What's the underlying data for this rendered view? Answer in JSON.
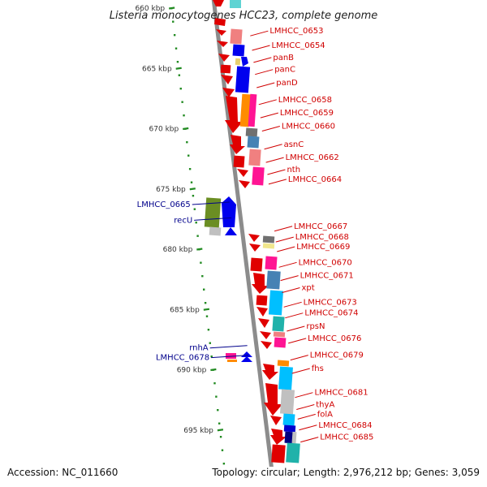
{
  "title": "Listeria monocytogenes HCC23, complete genome",
  "footer": {
    "accession": "Accession: NC_011660",
    "summary": "Topology: circular; Length: 2,976,212 bp; Genes: 3,059"
  },
  "colors": {
    "backbone": "#8c8c8c",
    "dots": "#228b22",
    "right_label": "#d00000",
    "left_label": "#00008b"
  },
  "scale": {
    "unit": "kbp",
    "ticks": [
      {
        "kbp": 660,
        "label": "660 kbp"
      },
      {
        "kbp": 665,
        "label": "665 kbp"
      },
      {
        "kbp": 670,
        "label": "670 kbp"
      },
      {
        "kbp": 675,
        "label": "675 kbp"
      },
      {
        "kbp": 680,
        "label": "680 kbp"
      },
      {
        "kbp": 685,
        "label": "685 kbp"
      },
      {
        "kbp": 690,
        "label": "690 kbp"
      },
      {
        "kbp": 695,
        "label": "695 kbp"
      }
    ]
  },
  "genes_right": [
    {
      "name": "LMHCC_0653",
      "kbp": 662.1
    },
    {
      "name": "LMHCC_0654",
      "kbp": 663.3
    },
    {
      "name": "panB",
      "kbp": 664.3
    },
    {
      "name": "panC",
      "kbp": 665.3
    },
    {
      "name": "panD",
      "kbp": 666.4
    },
    {
      "name": "LMHCC_0658",
      "kbp": 667.8
    },
    {
      "name": "LMHCC_0659",
      "kbp": 668.9
    },
    {
      "name": "LMHCC_0660",
      "kbp": 670.0
    },
    {
      "name": "asnC",
      "kbp": 671.5
    },
    {
      "name": "LMHCC_0662",
      "kbp": 672.6
    },
    {
      "name": "nth",
      "kbp": 673.6
    },
    {
      "name": "LMHCC_0664",
      "kbp": 674.4
    },
    {
      "name": "LMHCC_0667",
      "kbp": 678.3
    },
    {
      "name": "LMHCC_0668",
      "kbp": 679.2
    },
    {
      "name": "LMHCC_0669",
      "kbp": 680.0
    },
    {
      "name": "LMHCC_0670",
      "kbp": 681.3
    },
    {
      "name": "LMHCC_0671",
      "kbp": 682.4
    },
    {
      "name": "xpt",
      "kbp": 683.4
    },
    {
      "name": "LMHCC_0673",
      "kbp": 684.6
    },
    {
      "name": "LMHCC_0674",
      "kbp": 685.5
    },
    {
      "name": "rpsN",
      "kbp": 686.6
    },
    {
      "name": "LMHCC_0676",
      "kbp": 687.6
    },
    {
      "name": "LMHCC_0679",
      "kbp": 689.0
    },
    {
      "name": "fhs",
      "kbp": 690.1
    },
    {
      "name": "LMHCC_0681",
      "kbp": 692.1
    },
    {
      "name": "thyA",
      "kbp": 693.1
    },
    {
      "name": "folA",
      "kbp": 693.9
    },
    {
      "name": "LMHCC_0684",
      "kbp": 694.8
    },
    {
      "name": "LMHCC_0685",
      "kbp": 695.8
    }
  ],
  "genes_left": [
    {
      "name": "LMHCC_0665",
      "kbp": 676.5
    },
    {
      "name": "recU",
      "kbp": 677.8
    },
    {
      "name": "rnhA",
      "kbp": 688.4
    },
    {
      "name": "LMHCC_0678",
      "kbp": 689.2
    }
  ]
}
